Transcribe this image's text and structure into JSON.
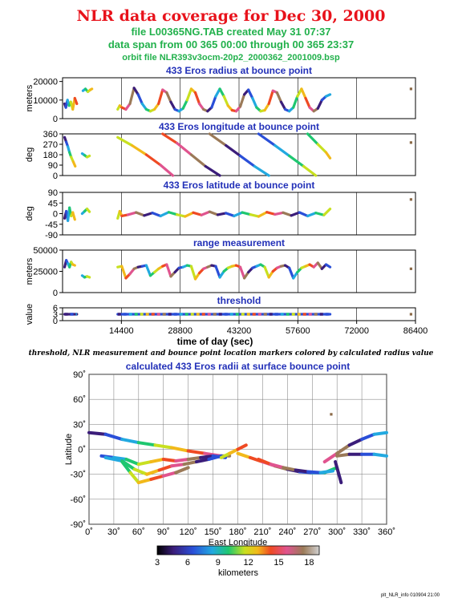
{
  "header": {
    "title": "NLR data coverage for Dec 30, 2000",
    "file_line": "file L00365NG.TAB created May 31 07:37",
    "span_line": "data span from 00 365 00:00 through 00 365 23:37",
    "orbit_line": "orbit file NLR393v3ocm-20p2_2000362_2001009.bsp"
  },
  "note": "threshold, NLR measurement and bounce point location markers colored by calculated radius value",
  "footer": "plt_NLR_info 010904 21:00",
  "colors": {
    "title": "#e8121b",
    "subtitle": "#22b14c",
    "panel_title": "#2230b8"
  },
  "chart_data": [
    {
      "type": "scatter",
      "title": "433 Eros radius at bounce point",
      "ylabel": "meters",
      "xlim": [
        0,
        86400
      ],
      "ylim": [
        0,
        22000
      ],
      "yticks": [
        "0",
        "10000",
        "20000"
      ],
      "ytick_values": [
        0,
        10000,
        20000
      ],
      "grid_x": [
        14400,
        28800,
        43200,
        57600,
        72000
      ],
      "series": [
        {
          "x": [
            500,
            800,
            1200,
            1600,
            2000,
            2500,
            3000,
            3500
          ],
          "y": [
            8000,
            6000,
            10000,
            7000,
            9000,
            5000,
            11000,
            8000
          ]
        },
        {
          "x": [
            5000,
            5600,
            6200,
            6800,
            7200
          ],
          "y": [
            15000,
            16000,
            14500,
            15500,
            16000
          ]
        },
        {
          "x": [
            13500,
            14000,
            14500,
            15500,
            16500,
            17500,
            18500,
            19500,
            20500,
            21500,
            22500,
            23500,
            24500,
            25500,
            26500,
            27500,
            28500,
            29500,
            30500,
            31500,
            32500,
            33500,
            34500,
            35500,
            36500,
            37500,
            38500,
            39500,
            40500,
            41500,
            42500,
            43500,
            44500,
            45500,
            46500,
            47500,
            48500,
            49500,
            50500,
            51500,
            52500,
            53500,
            54500,
            55500,
            56500,
            57500,
            58500,
            59500,
            60500,
            61500,
            62500,
            63500,
            64500,
            65500
          ],
          "y": [
            5000,
            7000,
            6000,
            5000,
            8000,
            16500,
            13000,
            8000,
            5000,
            4000,
            5000,
            8000,
            15500,
            14000,
            9000,
            5000,
            4000,
            5500,
            10000,
            16000,
            14000,
            8000,
            5000,
            4000,
            6000,
            12000,
            16000,
            12000,
            7000,
            4500,
            4000,
            6500,
            13000,
            15500,
            11000,
            6000,
            4000,
            4500,
            8000,
            15000,
            14000,
            9000,
            5000,
            4000,
            6000,
            12000,
            16000,
            11000,
            6000,
            4000,
            5500,
            10000,
            12000,
            13000
          ]
        },
        {
          "x": [
            85300
          ],
          "y": [
            16000
          ]
        }
      ]
    },
    {
      "type": "scatter",
      "title": "433 Eros longitude at bounce point",
      "ylabel": "deg",
      "xlim": [
        0,
        86400
      ],
      "ylim": [
        0,
        360
      ],
      "yticks": [
        "0",
        "90",
        "180",
        "270",
        "360"
      ],
      "ytick_values": [
        0,
        90,
        180,
        270,
        360
      ],
      "grid_x": [
        14400,
        28800,
        43200,
        57600,
        72000
      ],
      "series": [
        {
          "x": [
            500,
            900,
            1300,
            1700,
            2100,
            2600,
            3100
          ],
          "y": [
            330,
            290,
            250,
            200,
            160,
            120,
            80
          ]
        },
        {
          "x": [
            4800,
            5400,
            6000,
            6600
          ],
          "y": [
            190,
            175,
            160,
            170
          ]
        },
        {
          "x": [
            13500,
            17000,
            20500,
            24000,
            27000
          ],
          "y": [
            330,
            260,
            180,
            90,
            0
          ]
        },
        {
          "x": [
            24500,
            28000,
            31500,
            35000,
            38500
          ],
          "y": [
            360,
            280,
            180,
            80,
            0
          ]
        },
        {
          "x": [
            36000,
            40000,
            43500,
            47000,
            50500
          ],
          "y": [
            360,
            260,
            170,
            80,
            0
          ]
        },
        {
          "x": [
            48000,
            52000,
            55500,
            59000,
            62000
          ],
          "y": [
            360,
            260,
            170,
            80,
            0
          ]
        },
        {
          "x": [
            60000,
            62500,
            64500,
            65500
          ],
          "y": [
            360,
            270,
            200,
            150
          ]
        },
        {
          "x": [
            85300
          ],
          "y": [
            285
          ]
        }
      ]
    },
    {
      "type": "scatter",
      "title": "433 Eros latitude at bounce point",
      "ylabel": "deg",
      "xlim": [
        0,
        86400
      ],
      "ylim": [
        -90,
        90
      ],
      "yticks": [
        "-90",
        "-45",
        "0",
        "45",
        "90"
      ],
      "ytick_values": [
        -90,
        -45,
        0,
        45,
        90
      ],
      "grid_x": [
        14400,
        28800,
        43200,
        57600,
        72000
      ],
      "series": [
        {
          "x": [
            500,
            900,
            1300,
            1700,
            2100,
            2500,
            3000
          ],
          "y": [
            -20,
            10,
            -30,
            25,
            -10,
            5,
            -25
          ]
        },
        {
          "x": [
            4800,
            5400,
            6000,
            6600
          ],
          "y": [
            0,
            10,
            20,
            8
          ]
        },
        {
          "x": [
            13500,
            14000,
            14500,
            16000,
            18000,
            20000,
            22000,
            24000,
            26000,
            28000,
            30000,
            32000,
            34000,
            36000,
            38000,
            40000,
            42000,
            44000,
            46000,
            48000,
            50000,
            52000,
            54000,
            56000,
            58000,
            60000,
            62000,
            64000,
            65500
          ],
          "y": [
            -20,
            10,
            -10,
            -5,
            5,
            -8,
            3,
            -10,
            6,
            -4,
            -12,
            4,
            -6,
            8,
            -5,
            2,
            -10,
            5,
            -4,
            -12,
            6,
            -3,
            4,
            -8,
            5,
            -10,
            3,
            -6,
            20
          ]
        },
        {
          "x": [
            85300
          ],
          "y": [
            60
          ]
        }
      ]
    },
    {
      "type": "scatter",
      "title": "range measurement",
      "ylabel": "meters",
      "xlim": [
        0,
        86400
      ],
      "ylim": [
        0,
        50000
      ],
      "yticks": [
        "0",
        "25000",
        "50000"
      ],
      "ytick_values": [
        0,
        25000,
        50000
      ],
      "grid_x": [
        14400,
        28800,
        43200,
        57600,
        72000
      ],
      "series": [
        {
          "x": [
            500,
            900,
            1300,
            1700,
            2100,
            2500,
            3000
          ],
          "y": [
            30000,
            38000,
            34000,
            30000,
            36000,
            33000,
            32000
          ]
        },
        {
          "x": [
            4800,
            5400,
            6000,
            6600
          ],
          "y": [
            20000,
            18000,
            19000,
            18000
          ]
        },
        {
          "x": [
            13500,
            14500,
            15500,
            16500,
            17500,
            18500,
            19500,
            20500,
            21500,
            22500,
            23500,
            24500,
            25500,
            26500,
            27500,
            28500,
            29500,
            30500,
            31500,
            32500,
            33500,
            34500,
            35500,
            36500,
            37500,
            38500,
            39500,
            40500,
            41500,
            42500,
            43500,
            44500,
            45500,
            46500,
            47500,
            48500,
            49500,
            50500,
            51500,
            52500,
            53500,
            54500,
            55500,
            56500,
            57500,
            58500,
            59500,
            60500,
            61500,
            62500,
            63500,
            64500,
            65500
          ],
          "y": [
            30000,
            31000,
            17000,
            22000,
            28000,
            30000,
            31000,
            32000,
            20000,
            24000,
            28000,
            31000,
            33000,
            19000,
            24000,
            29000,
            30000,
            32000,
            31000,
            16000,
            23000,
            28000,
            30000,
            32000,
            31000,
            18000,
            25000,
            29000,
            31000,
            32000,
            30000,
            17000,
            24000,
            29000,
            31000,
            33000,
            30000,
            18000,
            25000,
            29000,
            31000,
            32000,
            29000,
            17000,
            24000,
            29000,
            31000,
            33000,
            30000,
            35000,
            28000,
            33000,
            30000
          ]
        },
        {
          "x": [
            85300
          ],
          "y": [
            28000
          ]
        }
      ]
    },
    {
      "type": "scatter",
      "title": "threshold",
      "ylabel": "value",
      "xlabel": "time of day (sec)",
      "xlim": [
        0,
        86400
      ],
      "ylim": [
        0,
        6
      ],
      "yticks": [
        "0",
        "3",
        "6"
      ],
      "ytick_values": [
        0,
        3,
        6
      ],
      "xticks": [
        "14400",
        "28800",
        "43200",
        "57600",
        "72000",
        "86400"
      ],
      "xtick_values": [
        14400,
        28800,
        43200,
        57600,
        72000,
        86400
      ],
      "grid_x": [
        14400,
        28800,
        43200,
        57600,
        72000
      ],
      "series": [
        {
          "x": [
            500,
            3500
          ],
          "y": [
            3,
            3
          ]
        },
        {
          "x": [
            13500,
            65500
          ],
          "y": [
            3,
            3
          ]
        },
        {
          "x": [
            85300
          ],
          "y": [
            3
          ]
        }
      ]
    },
    {
      "type": "scatter",
      "title": "calculated 433 Eros radii at surface bounce point",
      "xlabel": "East Longitude",
      "ylabel": "Latitude",
      "xlim": [
        0,
        360
      ],
      "ylim": [
        -90,
        90
      ],
      "xticks": [
        "0˚",
        "30˚",
        "60˚",
        "90˚",
        "120˚",
        "150˚",
        "180˚",
        "210˚",
        "240˚",
        "270˚",
        "300˚",
        "330˚",
        "360˚"
      ],
      "xtick_values": [
        0,
        30,
        60,
        90,
        120,
        150,
        180,
        210,
        240,
        270,
        300,
        330,
        360
      ],
      "yticks": [
        "-90˚",
        "-60˚",
        "-30˚",
        "0˚",
        "30˚",
        "60˚",
        "90˚"
      ],
      "ytick_values": [
        -90,
        -60,
        -30,
        0,
        30,
        60,
        90
      ],
      "colorbar": {
        "label": "kilometers",
        "ticks": [
          "3",
          "6",
          "9",
          "12",
          "15",
          "18"
        ],
        "tick_values": [
          3,
          6,
          9,
          12,
          15,
          18
        ],
        "range": [
          3,
          19
        ]
      },
      "series": [
        {
          "x": [
            0,
            20,
            40,
            60,
            80,
            100,
            120,
            140,
            160,
            170
          ],
          "y": [
            20,
            18,
            12,
            8,
            5,
            2,
            -2,
            -5,
            -8,
            -8
          ]
        },
        {
          "x": [
            15,
            30,
            45,
            60,
            75,
            90,
            105,
            120,
            135,
            150,
            165
          ],
          "y": [
            -8,
            -10,
            -12,
            -18,
            -15,
            -12,
            -14,
            -12,
            -10,
            -8,
            -10
          ]
        },
        {
          "x": [
            20,
            40,
            55,
            70,
            85,
            100,
            115,
            130,
            145,
            160
          ],
          "y": [
            -10,
            -14,
            -24,
            -30,
            -25,
            -20,
            -18,
            -15,
            -12,
            -8
          ]
        },
        {
          "x": [
            40,
            50,
            60,
            75,
            90,
            105,
            120
          ],
          "y": [
            -15,
            -28,
            -40,
            -36,
            -32,
            -28,
            -22
          ]
        },
        {
          "x": [
            160,
            170,
            180,
            190
          ],
          "y": [
            -10,
            -5,
            0,
            5
          ]
        },
        {
          "x": [
            180,
            195,
            210,
            225,
            240,
            255,
            270,
            285,
            300
          ],
          "y": [
            -5,
            -10,
            -15,
            -20,
            -24,
            -27,
            -28,
            -28,
            -22
          ]
        },
        {
          "x": [
            205,
            220,
            235,
            250,
            265,
            280,
            295
          ],
          "y": [
            -12,
            -18,
            -22,
            -25,
            -27,
            -28,
            -26
          ]
        },
        {
          "x": [
            285,
            300,
            315,
            330,
            345,
            360
          ],
          "y": [
            -15,
            -5,
            5,
            12,
            18,
            20
          ]
        },
        {
          "x": [
            300,
            315,
            330,
            345,
            360
          ],
          "y": [
            -8,
            -6,
            -6,
            -6,
            -8
          ]
        },
        {
          "x": [
            298,
            305
          ],
          "y": [
            -15,
            -40
          ]
        },
        {
          "x": [
            293
          ],
          "y": [
            42
          ]
        }
      ]
    }
  ]
}
